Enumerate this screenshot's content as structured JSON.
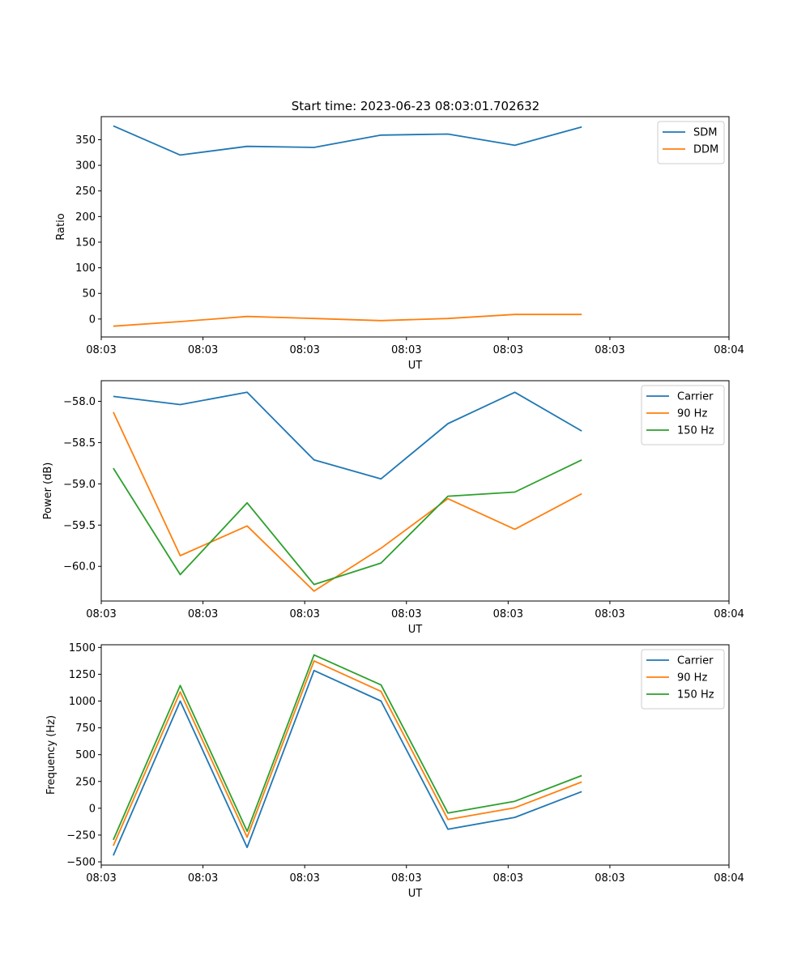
{
  "figure": {
    "title": "Start time: 2023-06-23 08:03:01.702632"
  },
  "colors": {
    "blue": "#1f77b4",
    "orange": "#ff7f0e",
    "green": "#2ca02c"
  },
  "chart_data": [
    {
      "type": "line",
      "title": "Start time: 2023-06-23 08:03:01.702632",
      "xlabel": "UT",
      "ylabel": "Ratio",
      "x": [
        1,
        2,
        3,
        4,
        5,
        6,
        7,
        8
      ],
      "xlim": [
        0.82,
        10.2
      ],
      "x_ticks": [
        0.82,
        2.34,
        3.86,
        5.38,
        6.9,
        8.42,
        10.2
      ],
      "x_tick_labels": [
        "08:03",
        "08:03",
        "08:03",
        "08:03",
        "08:03",
        "08:03",
        "08:04"
      ],
      "ylim": [
        -35,
        395
      ],
      "y_ticks": [
        0,
        50,
        100,
        150,
        200,
        250,
        300,
        350
      ],
      "y_tick_labels": [
        "0",
        "50",
        "100",
        "150",
        "200",
        "250",
        "300",
        "350"
      ],
      "legend": "upper right",
      "series": [
        {
          "name": "SDM",
          "color": "#1f77b4",
          "values": [
            377,
            320,
            337,
            335,
            359,
            361,
            339,
            375
          ]
        },
        {
          "name": "DDM",
          "color": "#ff7f0e",
          "values": [
            -14,
            -5,
            5,
            1,
            -3,
            1,
            9,
            9
          ]
        }
      ]
    },
    {
      "type": "line",
      "title": "",
      "xlabel": "UT",
      "ylabel": "Power (dB)",
      "x": [
        1,
        2,
        3,
        4,
        5,
        6,
        7,
        8
      ],
      "xlim": [
        0.82,
        10.2
      ],
      "x_ticks": [
        0.82,
        2.34,
        3.86,
        5.38,
        6.9,
        8.42,
        10.2
      ],
      "x_tick_labels": [
        "08:03",
        "08:03",
        "08:03",
        "08:03",
        "08:03",
        "08:03",
        "08:04"
      ],
      "ylim": [
        -60.42,
        -57.75
      ],
      "y_ticks": [
        -60.0,
        -59.5,
        -59.0,
        -58.5,
        -58.0
      ],
      "y_tick_labels": [
        "−60.0",
        "−59.5",
        "−59.0",
        "−58.5",
        "−58.0"
      ],
      "legend": "upper right",
      "series": [
        {
          "name": "Carrier",
          "color": "#1f77b4",
          "values": [
            -57.94,
            -58.04,
            -57.89,
            -58.71,
            -58.94,
            -58.27,
            -57.89,
            -58.36
          ]
        },
        {
          "name": "90 Hz",
          "color": "#ff7f0e",
          "values": [
            -58.13,
            -59.87,
            -59.51,
            -60.3,
            -59.78,
            -59.18,
            -59.55,
            -59.12
          ]
        },
        {
          "name": "150 Hz",
          "color": "#2ca02c",
          "values": [
            -58.81,
            -60.1,
            -59.23,
            -60.22,
            -59.96,
            -59.15,
            -59.1,
            -58.71
          ]
        }
      ]
    },
    {
      "type": "line",
      "title": "",
      "xlabel": "UT",
      "ylabel": "Frequency (Hz)",
      "x": [
        1,
        2,
        3,
        4,
        5,
        6,
        7,
        8
      ],
      "xlim": [
        0.82,
        10.2
      ],
      "x_ticks": [
        0.82,
        2.34,
        3.86,
        5.38,
        6.9,
        8.42,
        10.2
      ],
      "x_tick_labels": [
        "08:03",
        "08:03",
        "08:03",
        "08:03",
        "08:03",
        "08:03",
        "08:04"
      ],
      "ylim": [
        -530,
        1525
      ],
      "y_ticks": [
        -500,
        -250,
        0,
        250,
        500,
        750,
        1000,
        1250,
        1500
      ],
      "y_tick_labels": [
        "−500",
        "−250",
        "0",
        "250",
        "500",
        "750",
        "1000",
        "1250",
        "1500"
      ],
      "legend": "upper right",
      "series": [
        {
          "name": "Carrier",
          "color": "#1f77b4",
          "values": [
            -440,
            1000,
            -365,
            1285,
            1000,
            -195,
            -85,
            155
          ]
        },
        {
          "name": "90 Hz",
          "color": "#ff7f0e",
          "values": [
            -350,
            1085,
            -270,
            1375,
            1090,
            -105,
            5,
            245
          ]
        },
        {
          "name": "150 Hz",
          "color": "#2ca02c",
          "values": [
            -295,
            1145,
            -215,
            1430,
            1150,
            -45,
            65,
            305
          ]
        }
      ]
    }
  ]
}
